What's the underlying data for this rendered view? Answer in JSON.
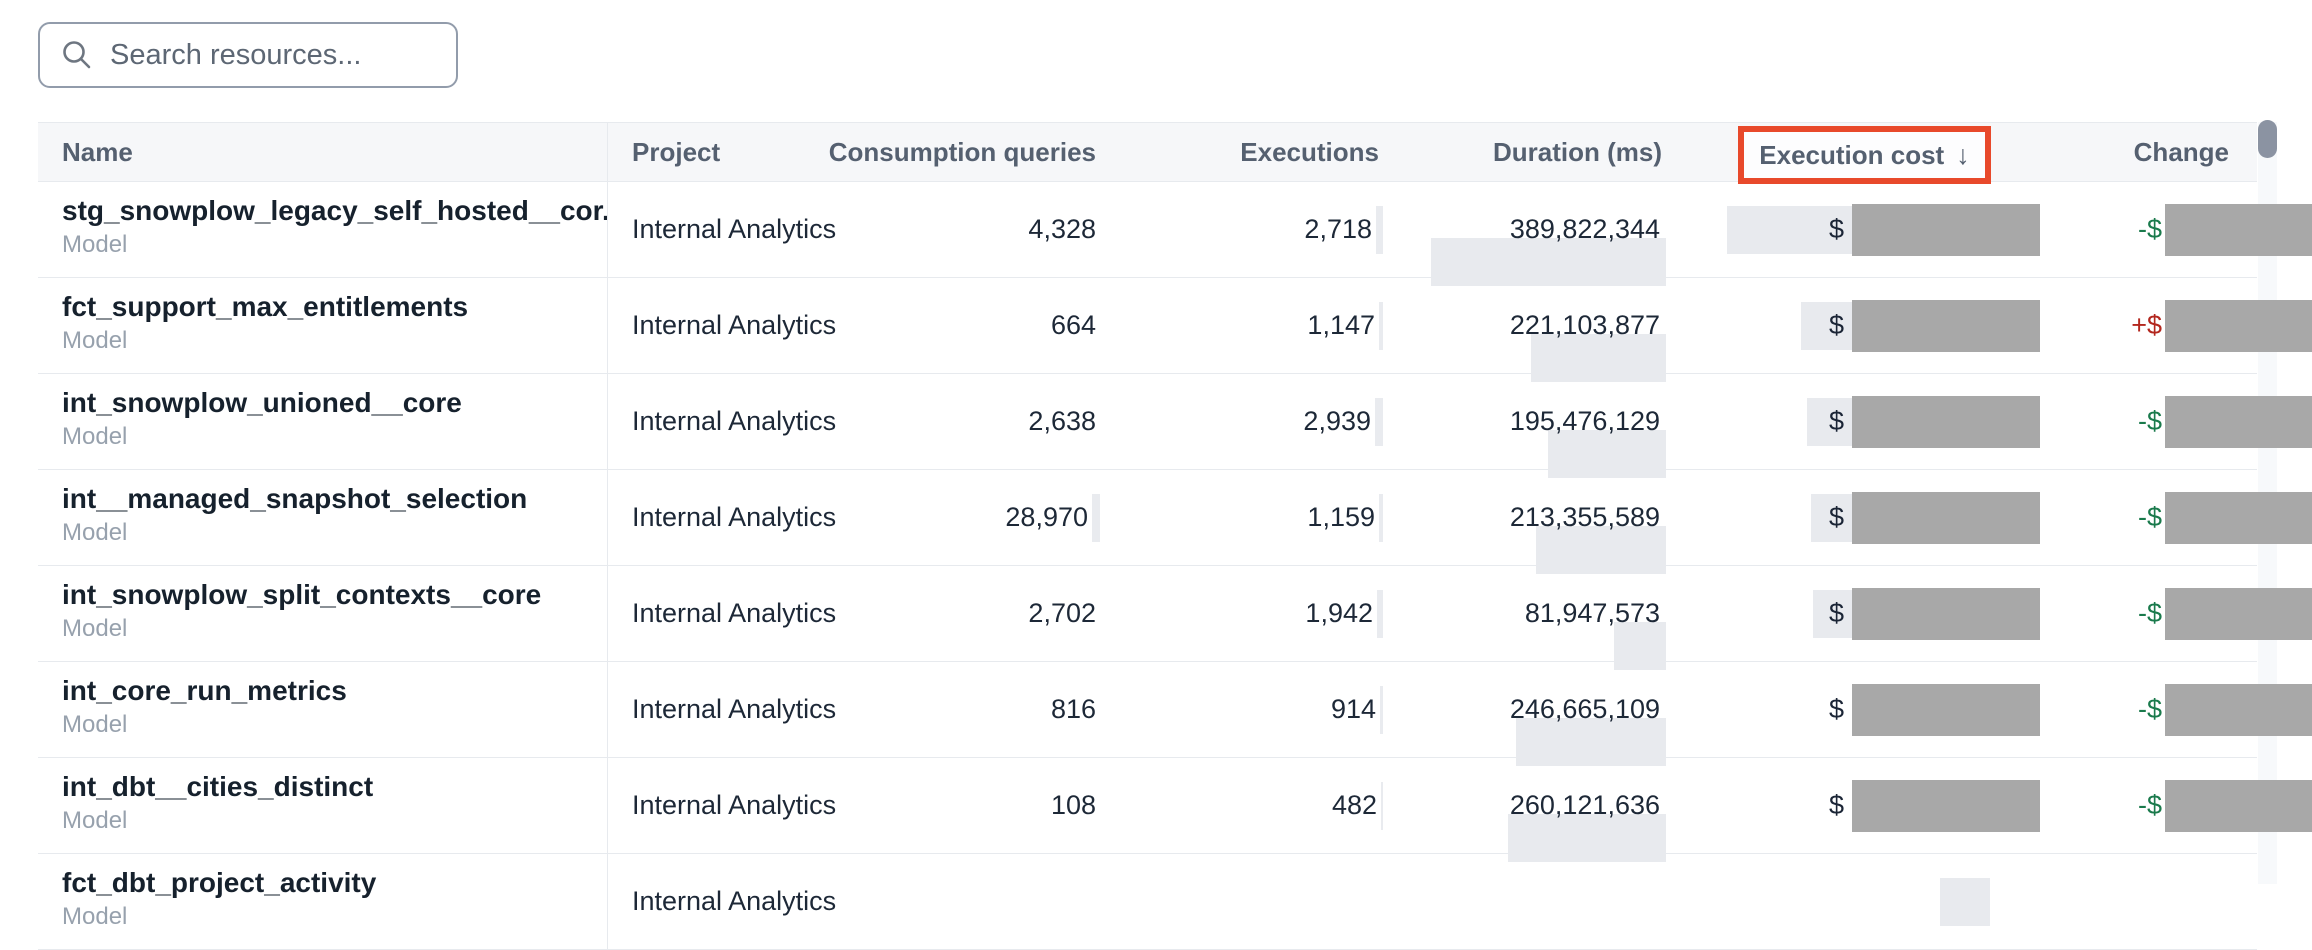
{
  "search": {
    "placeholder": "Search resources..."
  },
  "table": {
    "columns": [
      {
        "key": "name",
        "label": "Name"
      },
      {
        "key": "project",
        "label": "Project"
      },
      {
        "key": "queries",
        "label": "Consumption queries"
      },
      {
        "key": "executions",
        "label": "Executions"
      },
      {
        "key": "duration",
        "label": "Duration (ms)"
      },
      {
        "key": "cost",
        "label": "Execution cost"
      },
      {
        "key": "change",
        "label": "Change"
      }
    ],
    "sorted_column": "Execution cost",
    "sort_indicator": "↓",
    "rows": [
      {
        "name": "stg_snowplow_legacy_self_hosted__cor...",
        "type": "Model",
        "project": "Internal Analytics",
        "queries": "4,328",
        "queries_bar": 0,
        "executions": "2,718",
        "exec_bar": 7,
        "duration": "389,822,344",
        "duration_bar": 235,
        "cost_prefix": "$",
        "cost_hl": 100,
        "change_sign": "-$",
        "change_dir": "down",
        "redacted": true
      },
      {
        "name": "fct_support_max_entitlements",
        "type": "Model",
        "project": "Internal Analytics",
        "queries": "664",
        "queries_bar": 0,
        "executions": "1,147",
        "exec_bar": 4,
        "duration": "221,103,877",
        "duration_bar": 135,
        "cost_prefix": "$",
        "cost_hl": 26,
        "change_sign": "+$",
        "change_dir": "up",
        "redacted": true
      },
      {
        "name": "int_snowplow_unioned__core",
        "type": "Model",
        "project": "Internal Analytics",
        "queries": "2,638",
        "queries_bar": 0,
        "executions": "2,939",
        "exec_bar": 8,
        "duration": "195,476,129",
        "duration_bar": 118,
        "cost_prefix": "$",
        "cost_hl": 20,
        "change_sign": "-$",
        "change_dir": "down",
        "redacted": true
      },
      {
        "name": "int__managed_snapshot_selection",
        "type": "Model",
        "project": "Internal Analytics",
        "queries": "28,970",
        "queries_bar": 8,
        "executions": "1,159",
        "exec_bar": 4,
        "duration": "213,355,589",
        "duration_bar": 130,
        "cost_prefix": "$",
        "cost_hl": 16,
        "change_sign": "-$",
        "change_dir": "down",
        "redacted": true
      },
      {
        "name": "int_snowplow_split_contexts__core",
        "type": "Model",
        "project": "Internal Analytics",
        "queries": "2,702",
        "queries_bar": 0,
        "executions": "1,942",
        "exec_bar": 6,
        "duration": "81,947,573",
        "duration_bar": 52,
        "cost_prefix": "$",
        "cost_hl": 14,
        "change_sign": "-$",
        "change_dir": "down",
        "redacted": true
      },
      {
        "name": "int_core_run_metrics",
        "type": "Model",
        "project": "Internal Analytics",
        "queries": "816",
        "queries_bar": 0,
        "executions": "914",
        "exec_bar": 3,
        "duration": "246,665,109",
        "duration_bar": 150,
        "cost_prefix": "$",
        "cost_hl": 0,
        "change_sign": "-$",
        "change_dir": "down",
        "redacted": true
      },
      {
        "name": "int_dbt__cities_distinct",
        "type": "Model",
        "project": "Internal Analytics",
        "queries": "108",
        "queries_bar": 0,
        "executions": "482",
        "exec_bar": 2,
        "duration": "260,121,636",
        "duration_bar": 158,
        "cost_prefix": "$",
        "cost_hl": 0,
        "change_sign": "-$",
        "change_dir": "down",
        "redacted": true
      },
      {
        "name": "fct_dbt_project_activity",
        "type": "Model",
        "project": "Internal Analytics",
        "queries": "",
        "queries_bar": 0,
        "executions": "",
        "exec_bar": 0,
        "duration": "",
        "duration_bar": 0,
        "cost_prefix": "",
        "cost_hl": 50,
        "change_sign": "",
        "change_dir": "down",
        "redacted": false
      }
    ]
  },
  "colors": {
    "annotation_red": "#E8492B",
    "redaction_gray": "#A8A8A8",
    "value_highlight_gray": "#E8EAEE",
    "change_positive_red": "#B3271E",
    "change_negative_green": "#1A7A4C",
    "header_bg": "#F6F7F9",
    "scrollbar_thumb": "#8B93A2"
  }
}
